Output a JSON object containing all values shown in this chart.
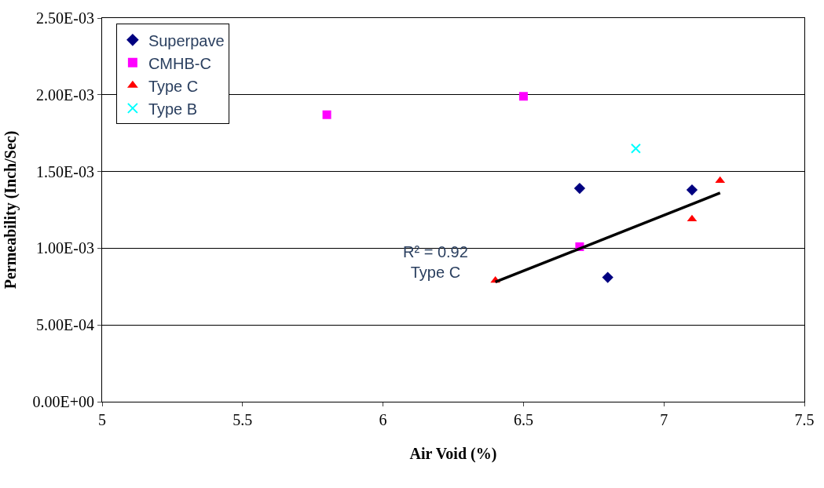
{
  "chart_data": {
    "type": "scatter",
    "xlabel": "Air Void (%)",
    "ylabel": "Permeability (Inch/Sec)",
    "xlim": [
      5,
      7.5
    ],
    "xticks": [
      5,
      5.5,
      6,
      6.5,
      7,
      7.5
    ],
    "ylim": [
      0,
      0.0025
    ],
    "yticks": [
      {
        "value": 0,
        "label": "0.00E+00"
      },
      {
        "value": 0.0005,
        "label": "5.00E-04"
      },
      {
        "value": 0.001,
        "label": "1.00E-03"
      },
      {
        "value": 0.0015,
        "label": "1.50E-03"
      },
      {
        "value": 0.002,
        "label": "2.00E-03"
      },
      {
        "value": 0.0025,
        "label": "2.50E-03"
      }
    ],
    "grid": "y",
    "legend": "top left",
    "series": [
      {
        "name": "Superpave",
        "color": "#000080",
        "marker": "diamond",
        "x": [
          6.7,
          6.8,
          7.1
        ],
        "values": [
          0.00139,
          0.00081,
          0.00138
        ]
      },
      {
        "name": "CMHB-C",
        "color": "#ff00ff",
        "marker": "square",
        "x": [
          5.8,
          6.5,
          6.7
        ],
        "values": [
          0.00187,
          0.00199,
          0.00101
        ]
      },
      {
        "name": "Type C",
        "color": "#ff0000",
        "marker": "triangle",
        "x": [
          6.4,
          7.1,
          7.2
        ],
        "values": [
          0.00079,
          0.00119,
          0.00144
        ]
      },
      {
        "name": "Type B",
        "color": "#00ffff",
        "marker": "cross",
        "x": [
          6.9
        ],
        "values": [
          0.00165
        ]
      },
      {
        "type": "line",
        "color": "#000000",
        "marker": "none",
        "x": [
          6.4,
          7.2
        ],
        "values": [
          0.00078,
          0.00136
        ]
      }
    ],
    "annotations": [
      "R² = 0.92\nType C"
    ]
  }
}
